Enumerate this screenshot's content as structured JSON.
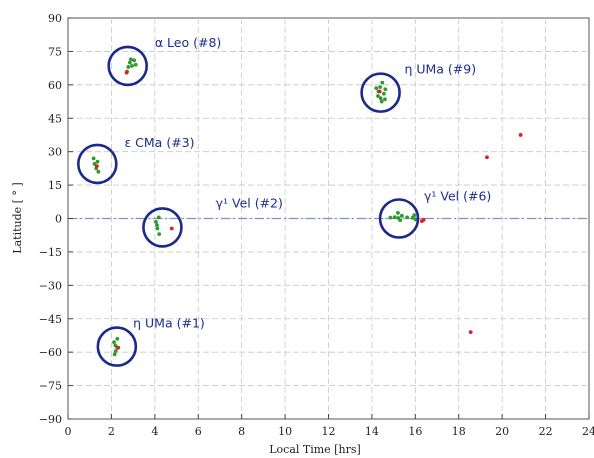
{
  "chart_data": {
    "type": "scatter",
    "xlabel": "Local Time [hrs]",
    "ylabel": "Latitude [ ° ]",
    "xlim": [
      0,
      24
    ],
    "ylim": [
      -90,
      90
    ],
    "xticks": [
      0,
      2,
      4,
      6,
      8,
      10,
      12,
      14,
      16,
      18,
      20,
      22,
      24
    ],
    "yticks": [
      -90,
      -75,
      -60,
      -45,
      -30,
      -15,
      0,
      15,
      30,
      45,
      60,
      75,
      90
    ],
    "grid": true,
    "reference_line": {
      "y": 0,
      "style": "dash-dot",
      "color": "#7d8fd8"
    },
    "colors": {
      "green": "#2e9a2e",
      "red": "#e02020",
      "circle": "#1a2a8a"
    },
    "series": [
      {
        "color": "green",
        "points": [
          [
            2.72,
            66
          ],
          [
            2.78,
            68
          ],
          [
            2.85,
            70
          ],
          [
            2.9,
            71.5
          ],
          [
            2.95,
            68.5
          ],
          [
            3.05,
            71
          ],
          [
            3.12,
            69
          ],
          [
            1.18,
            27
          ],
          [
            1.22,
            24.5
          ],
          [
            1.3,
            22.5
          ],
          [
            1.36,
            25.5
          ],
          [
            1.4,
            21
          ],
          [
            4.05,
            -1.5
          ],
          [
            4.1,
            -3
          ],
          [
            4.12,
            -4.5
          ],
          [
            4.2,
            -7
          ],
          [
            4.18,
            0.5
          ],
          [
            2.12,
            -55.5
          ],
          [
            2.18,
            -57
          ],
          [
            2.2,
            -59.5
          ],
          [
            2.27,
            -54
          ],
          [
            2.32,
            -58
          ],
          [
            2.15,
            -61
          ],
          [
            14.2,
            58.5
          ],
          [
            14.28,
            55
          ],
          [
            14.3,
            57
          ],
          [
            14.38,
            59
          ],
          [
            14.4,
            54
          ],
          [
            14.45,
            52.5
          ],
          [
            14.48,
            61
          ],
          [
            14.55,
            56
          ],
          [
            14.6,
            53.5
          ],
          [
            14.62,
            58
          ],
          [
            14.85,
            0.4
          ],
          [
            15.05,
            0.6
          ],
          [
            15.2,
            2.5
          ],
          [
            15.22,
            0.2
          ],
          [
            15.3,
            -0.8
          ],
          [
            15.38,
            1.2
          ],
          [
            15.62,
            0.5
          ],
          [
            15.88,
            0.3
          ],
          [
            15.95,
            1.5
          ],
          [
            16.02,
            -0.4
          ]
        ]
      },
      {
        "color": "red",
        "points": [
          [
            2.7,
            65.5
          ],
          [
            1.33,
            23.5
          ],
          [
            4.78,
            -4.5
          ],
          [
            2.28,
            -58
          ],
          [
            14.36,
            57
          ],
          [
            16.3,
            -1.2
          ],
          [
            16.38,
            -0.6
          ],
          [
            19.3,
            27.5
          ],
          [
            20.85,
            37.5
          ],
          [
            18.55,
            -51
          ]
        ]
      }
    ],
    "annotations": [
      {
        "text": "α Leo (#8)",
        "circle": [
          2.75,
          68.5
        ],
        "label": [
          4.0,
          77
        ]
      },
      {
        "text": "η UMa (#9)",
        "circle": [
          14.4,
          56.5
        ],
        "label": [
          15.5,
          65
        ]
      },
      {
        "text": "ε CMa (#3)",
        "circle": [
          1.35,
          24.5
        ],
        "label": [
          2.6,
          32
        ]
      },
      {
        "text": "γ¹ Vel (#2)",
        "circle": [
          4.35,
          -4
        ],
        "label": [
          6.8,
          5
        ]
      },
      {
        "text": "γ¹ Vel (#6)",
        "circle": [
          15.25,
          0
        ],
        "label": [
          16.4,
          8
        ]
      },
      {
        "text": "η UMa (#1)",
        "circle": [
          2.25,
          -57.5
        ],
        "label": [
          3.0,
          -49
        ]
      }
    ]
  }
}
